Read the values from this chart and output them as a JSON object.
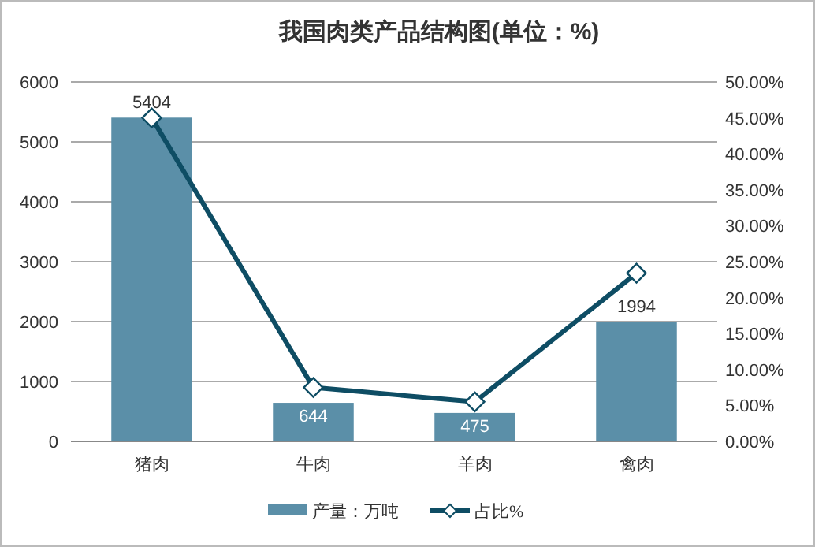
{
  "chart_data": {
    "type": "bar",
    "title": "我国肉类产品结构图(单位：%)",
    "categories": [
      "猪肉",
      "牛肉",
      "羊肉",
      "禽肉"
    ],
    "series": [
      {
        "name": "产量：万吨",
        "color": "#5b8fa8",
        "values": [
          5404,
          644,
          475,
          1994
        ],
        "value_labels": [
          "5404",
          "644",
          "475",
          "1994"
        ]
      },
      {
        "name": "占比%",
        "type": "line",
        "axis": "y2",
        "color": "#0e4d64",
        "marker": "diamond",
        "values": [
          45.0,
          7.5,
          5.5,
          23.4
        ]
      }
    ],
    "ylim": [
      0,
      6000
    ],
    "yticks": [
      0,
      1000,
      2000,
      3000,
      4000,
      5000,
      6000
    ],
    "y2lim": [
      0,
      50
    ],
    "y2ticks": [
      {
        "value": 0,
        "label": "0.00%"
      },
      {
        "value": 5,
        "label": "5.00%"
      },
      {
        "value": 10,
        "label": "10.00%"
      },
      {
        "value": 15,
        "label": "15.00%"
      },
      {
        "value": 20,
        "label": "20.00%"
      },
      {
        "value": 25,
        "label": "25.00%"
      },
      {
        "value": 30,
        "label": "30.00%"
      },
      {
        "value": 35,
        "label": "35.00%"
      },
      {
        "value": 40,
        "label": "40.00%"
      },
      {
        "value": 45,
        "label": "45.00%"
      },
      {
        "value": 50,
        "label": "50.00%"
      }
    ],
    "grid": "y",
    "legend": "bottom"
  }
}
